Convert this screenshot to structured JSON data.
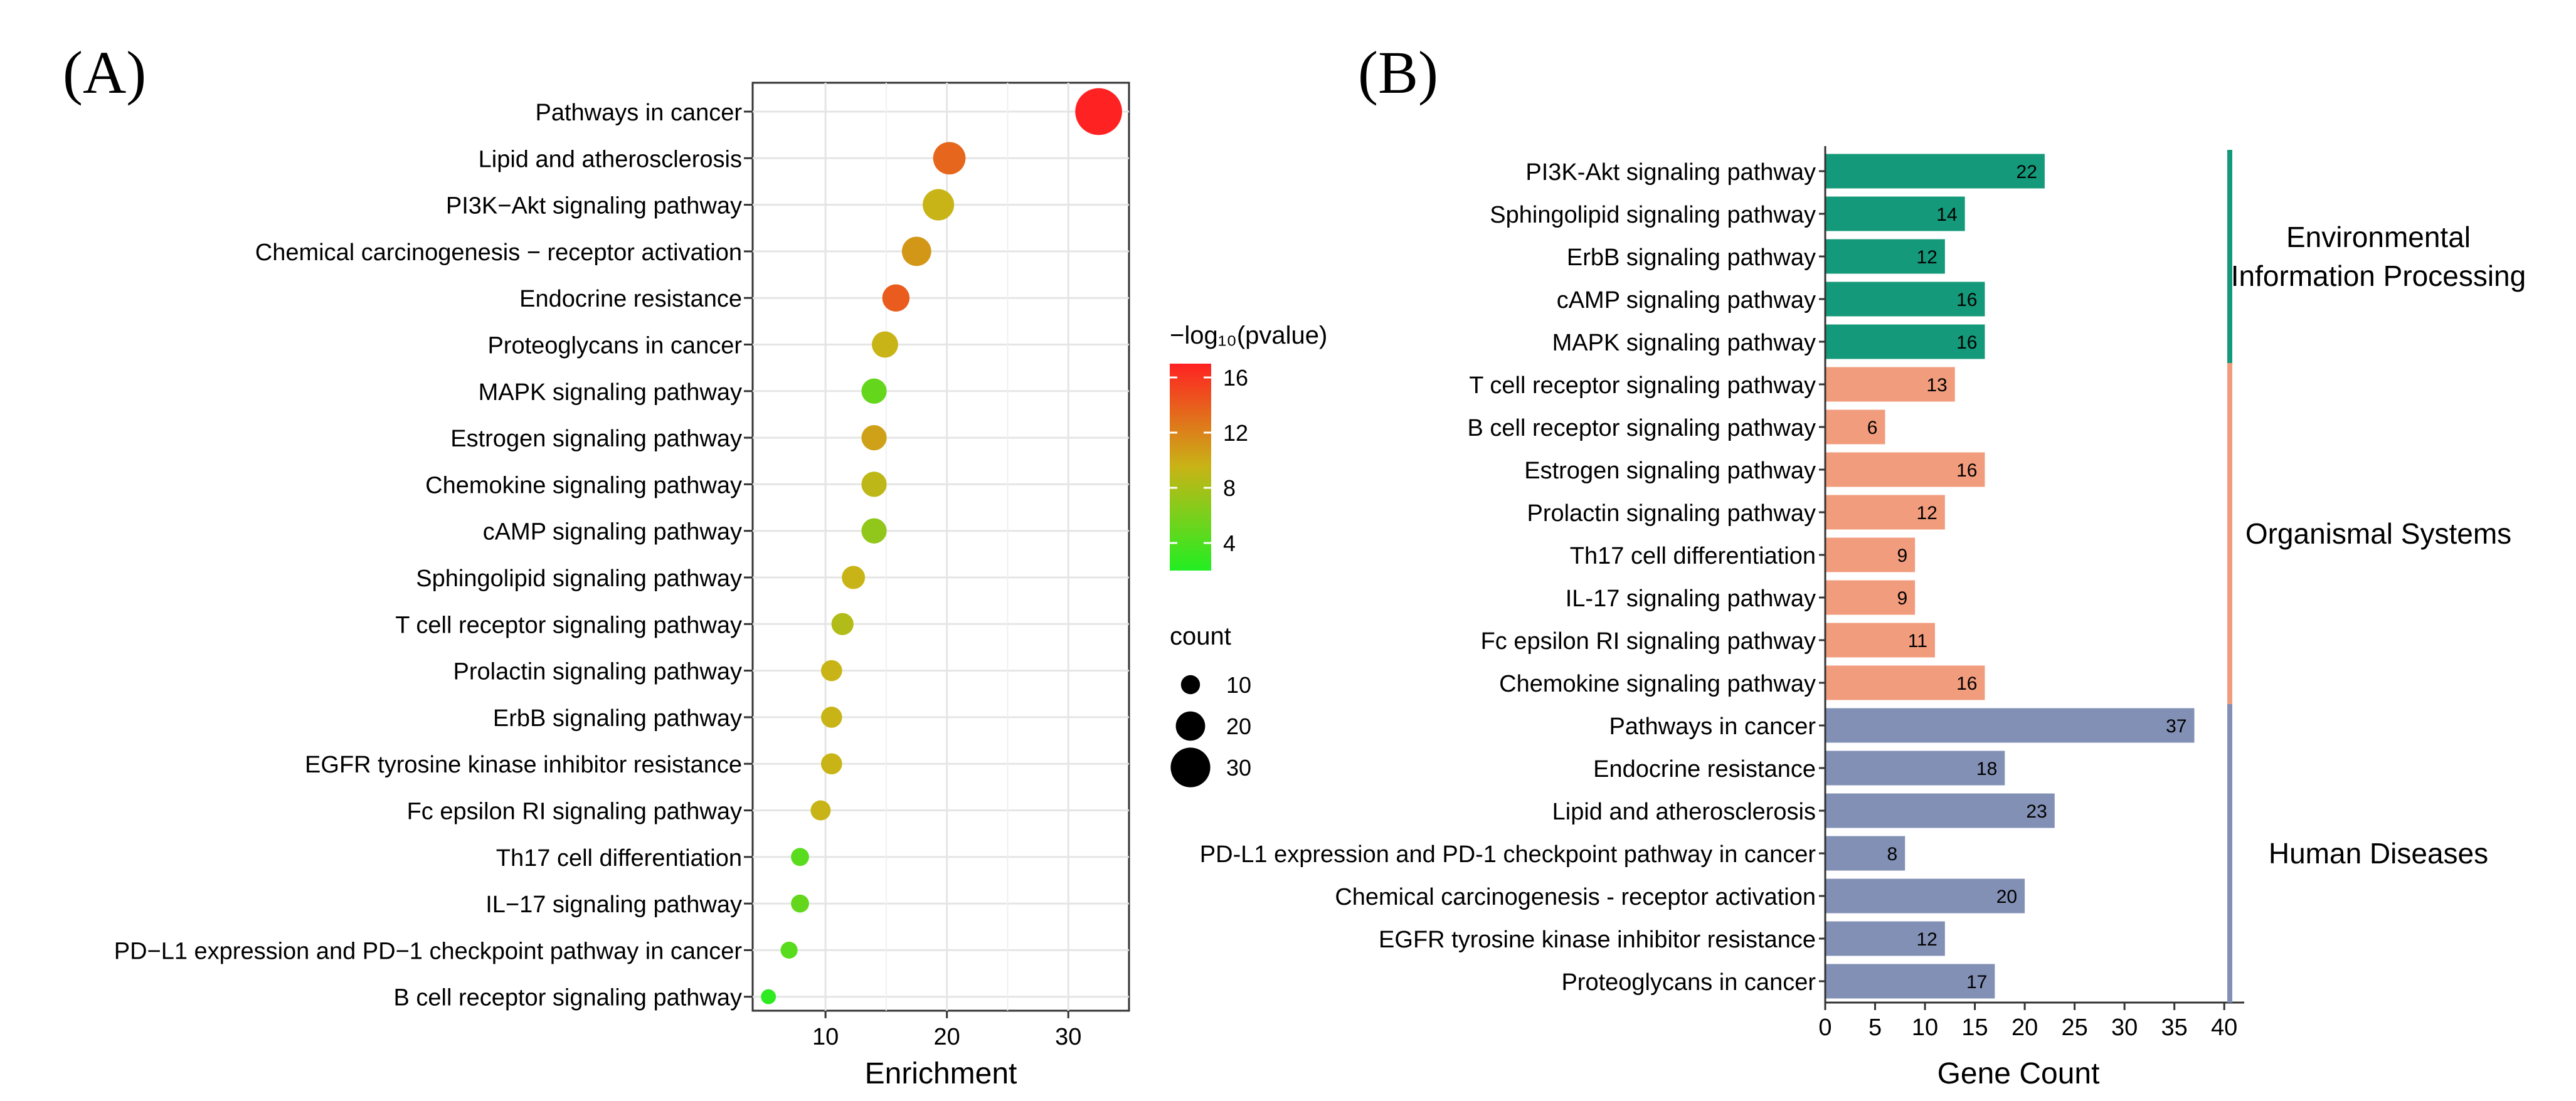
{
  "chart_data": [
    {
      "panel": "(A)",
      "type": "scatter",
      "xlabel": "Enrichment",
      "ylabel": "",
      "xlim": [
        4,
        35
      ],
      "xticks": [
        10,
        20,
        30
      ],
      "grid": true,
      "color_legend": {
        "title": "−log₁₀(pvalue)",
        "ticks": [
          4,
          8,
          12,
          16
        ],
        "range": [
          2,
          17
        ],
        "low_color": "#22ee22",
        "mid_color": "#c8b416",
        "high_color": "#ff2222"
      },
      "size_legend": {
        "title": "count",
        "values": [
          10,
          20,
          30
        ]
      },
      "points": [
        {
          "label": "Pathways in cancer",
          "enrichment": 32.5,
          "count": 37,
          "neglog10p": 17.0
        },
        {
          "label": "Lipid and atherosclerosis",
          "enrichment": 20.2,
          "count": 23,
          "neglog10p": 13.5
        },
        {
          "label": "PI3K−Akt signaling pathway",
          "enrichment": 19.3,
          "count": 22,
          "neglog10p": 9.5
        },
        {
          "label": "Chemical carcinogenesis − receptor activation",
          "enrichment": 17.5,
          "count": 20,
          "neglog10p": 11.0
        },
        {
          "label": "Endocrine resistance",
          "enrichment": 15.8,
          "count": 18,
          "neglog10p": 14.0
        },
        {
          "label": "Proteoglycans in cancer",
          "enrichment": 14.9,
          "count": 17,
          "neglog10p": 9.5
        },
        {
          "label": "MAPK signaling pathway",
          "enrichment": 14.0,
          "count": 16,
          "neglog10p": 5.0
        },
        {
          "label": "Estrogen signaling pathway",
          "enrichment": 14.0,
          "count": 16,
          "neglog10p": 10.5
        },
        {
          "label": "Chemokine signaling pathway",
          "enrichment": 14.0,
          "count": 16,
          "neglog10p": 9.0
        },
        {
          "label": "cAMP signaling pathway",
          "enrichment": 14.0,
          "count": 16,
          "neglog10p": 7.0
        },
        {
          "label": "Sphingolipid signaling pathway",
          "enrichment": 12.3,
          "count": 14,
          "neglog10p": 9.5
        },
        {
          "label": "T cell receptor signaling pathway",
          "enrichment": 11.4,
          "count": 13,
          "neglog10p": 8.5
        },
        {
          "label": "Prolactin signaling pathway",
          "enrichment": 10.5,
          "count": 12,
          "neglog10p": 9.5
        },
        {
          "label": "ErbB signaling pathway",
          "enrichment": 10.5,
          "count": 12,
          "neglog10p": 9.5
        },
        {
          "label": "EGFR tyrosine kinase inhibitor resistance",
          "enrichment": 10.5,
          "count": 12,
          "neglog10p": 9.5
        },
        {
          "label": "Fc epsilon RI signaling pathway",
          "enrichment": 9.6,
          "count": 11,
          "neglog10p": 9.5
        },
        {
          "label": "Th17 cell differentiation",
          "enrichment": 7.9,
          "count": 9,
          "neglog10p": 4.5
        },
        {
          "label": "IL−17 signaling pathway",
          "enrichment": 7.9,
          "count": 9,
          "neglog10p": 5.0
        },
        {
          "label": "PD−L1 expression and PD−1 checkpoint pathway in cancer",
          "enrichment": 7.0,
          "count": 8,
          "neglog10p": 4.5
        },
        {
          "label": "B cell receptor signaling pathway",
          "enrichment": 5.3,
          "count": 6,
          "neglog10p": 2.5
        }
      ]
    },
    {
      "panel": "(B)",
      "type": "bar",
      "orientation": "horizontal",
      "xlabel": "Gene Count",
      "ylabel": "",
      "xlim": [
        0,
        42
      ],
      "xticks": [
        0,
        5,
        10,
        15,
        20,
        25,
        30,
        35,
        40
      ],
      "grid": false,
      "groups": [
        {
          "name": "Environmental\nInformation Processing",
          "color": "#14997a",
          "categories": [
            "PI3K-Akt signaling pathway",
            "Sphingolipid signaling pathway",
            "ErbB signaling pathway",
            "cAMP signaling pathway",
            "MAPK signaling pathway"
          ],
          "values": [
            22,
            14,
            12,
            16,
            16
          ]
        },
        {
          "name": "Organismal Systems",
          "color": "#f29c7e",
          "categories": [
            "T cell receptor signaling pathway",
            "B cell receptor signaling pathway",
            "Estrogen signaling pathway",
            "Prolactin signaling pathway",
            "Th17 cell differentiation",
            "IL-17 signaling pathway",
            "Fc epsilon RI signaling pathway",
            "Chemokine signaling pathway"
          ],
          "values": [
            13,
            6,
            16,
            12,
            9,
            9,
            11,
            16
          ]
        },
        {
          "name": "Human Diseases",
          "color": "#8390b5",
          "categories": [
            "Pathways in cancer",
            "Endocrine resistance",
            "Lipid and atherosclerosis",
            "PD-L1 expression and PD-1 checkpoint pathway in cancer",
            "Chemical carcinogenesis - receptor activation",
            "EGFR tyrosine kinase inhibitor resistance",
            "Proteoglycans in cancer"
          ],
          "values": [
            37,
            18,
            23,
            8,
            20,
            12,
            17
          ]
        }
      ]
    }
  ]
}
